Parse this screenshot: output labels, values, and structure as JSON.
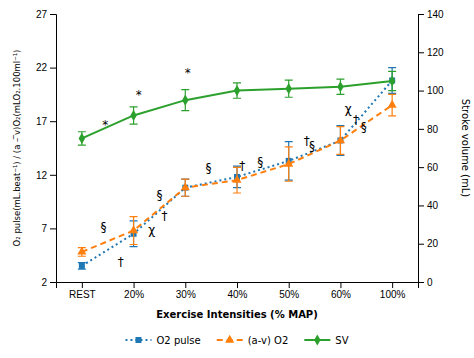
{
  "chart_data": {
    "type": "line",
    "categories": [
      "REST",
      "20%",
      "30%",
      "40%",
      "50%",
      "60%",
      "100%"
    ],
    "series": [
      {
        "name": "O2 pulse",
        "values": [
          3.5,
          6.5,
          10.8,
          11.8,
          13.3,
          15.2,
          20.8
        ],
        "errors": [
          0.3,
          1.2,
          0.8,
          1.0,
          1.8,
          1.4,
          1.2
        ],
        "marker": "square",
        "line_style": "dotted"
      },
      {
        "name": "(a-v) O2",
        "values": [
          4.8,
          6.8,
          10.8,
          11.5,
          13.0,
          15.2,
          18.5
        ],
        "errors": [
          0.4,
          1.3,
          0.8,
          1.2,
          1.6,
          1.3,
          1.0
        ],
        "marker": "triangle",
        "line_style": "dashed"
      },
      {
        "name": "SV",
        "values": [
          75,
          87,
          95,
          100,
          101,
          102,
          105
        ],
        "errors": [
          3.5,
          4.5,
          5.5,
          4.0,
          4.5,
          4.0,
          5.0
        ],
        "marker": "diamond",
        "line_style": "solid",
        "axis": "y2"
      }
    ],
    "xlabel": "Exercise Intensities (% MAP)",
    "ylabel": "O₂ pulse(mL.beat⁻¹) / (a – ̅v)O₂(mLO₂.100ml⁻¹)",
    "y2label": "Stroke volume (mL)",
    "ylim": [
      2,
      27
    ],
    "yticks": [
      2,
      7,
      12,
      17,
      22,
      27
    ],
    "y2lim": [
      0,
      140
    ],
    "y2ticks": [
      0,
      20,
      40,
      60,
      80,
      100,
      120,
      140
    ],
    "annotations": [
      {
        "x": 0.45,
        "y": 16.0,
        "text": "*"
      },
      {
        "x": 1.1,
        "y": 18.8,
        "text": "*"
      },
      {
        "x": 2.05,
        "y": 20.8,
        "text": "*"
      },
      {
        "x": 0.42,
        "y": 6.5,
        "text": "§"
      },
      {
        "x": 1.5,
        "y": 9.5,
        "text": "§"
      },
      {
        "x": 2.45,
        "y": 12.0,
        "text": "§"
      },
      {
        "x": 3.45,
        "y": 12.5,
        "text": "§"
      },
      {
        "x": 4.45,
        "y": 14.0,
        "text": "§"
      },
      {
        "x": 5.45,
        "y": 15.8,
        "text": "§"
      },
      {
        "x": 0.75,
        "y": 3.2,
        "text": "†"
      },
      {
        "x": 1.6,
        "y": 7.5,
        "text": "†"
      },
      {
        "x": 3.1,
        "y": 12.2,
        "text": "†"
      },
      {
        "x": 4.35,
        "y": 14.5,
        "text": "†"
      },
      {
        "x": 5.3,
        "y": 16.5,
        "text": "†"
      },
      {
        "x": 1.35,
        "y": 6.2,
        "text": "χ"
      },
      {
        "x": 5.15,
        "y": 17.5,
        "text": "χ"
      }
    ],
    "legend": "bottom",
    "grid": false
  }
}
